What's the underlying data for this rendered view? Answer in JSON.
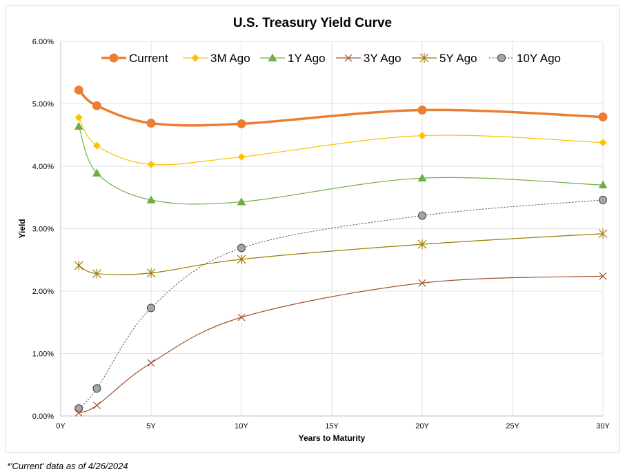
{
  "chart_data": {
    "type": "line",
    "title": "U.S. Treasury Yield Curve",
    "xlabel": "Years to Maturity",
    "ylabel": "Yield",
    "xlim": [
      0,
      30
    ],
    "ylim": [
      0,
      0.06
    ],
    "xticks": [
      0,
      5,
      10,
      15,
      20,
      25,
      30
    ],
    "xtick_labels": [
      "0Y",
      "5Y",
      "10Y",
      "15Y",
      "20Y",
      "25Y",
      "30Y"
    ],
    "yticks": [
      0,
      0.01,
      0.02,
      0.03,
      0.04,
      0.05,
      0.06
    ],
    "ytick_labels": [
      "0.00%",
      "1.00%",
      "2.00%",
      "3.00%",
      "4.00%",
      "5.00%",
      "6.00%"
    ],
    "grid": true,
    "legend_position": "top",
    "x": [
      1,
      2,
      5,
      10,
      20,
      30
    ],
    "series": [
      {
        "name": "Current",
        "color": "#ed7d31",
        "marker": "circle",
        "style": "solid-thick",
        "values": [
          0.0522,
          0.0497,
          0.0469,
          0.0468,
          0.049,
          0.0479
        ]
      },
      {
        "name": "3M Ago",
        "color": "#ffc000",
        "marker": "diamond",
        "style": "solid",
        "values": [
          0.0478,
          0.0433,
          0.0403,
          0.0415,
          0.0449,
          0.0438
        ]
      },
      {
        "name": "1Y Ago",
        "color": "#70ad47",
        "marker": "triangle",
        "style": "solid",
        "values": [
          0.0464,
          0.0389,
          0.0346,
          0.0343,
          0.0381,
          0.037
        ]
      },
      {
        "name": "3Y Ago",
        "color": "#a0522d",
        "marker": "x",
        "style": "solid",
        "values": [
          0.0005,
          0.0017,
          0.0085,
          0.0158,
          0.0213,
          0.0224
        ]
      },
      {
        "name": "5Y Ago",
        "color": "#9c7a00",
        "marker": "star",
        "style": "solid",
        "values": [
          0.0241,
          0.0228,
          0.0229,
          0.0251,
          0.0275,
          0.0292
        ]
      },
      {
        "name": "10Y Ago",
        "color": "#7f7f7f",
        "marker": "circle-grey",
        "style": "dotted",
        "values": [
          0.0012,
          0.0044,
          0.0173,
          0.0269,
          0.0321,
          0.0346
        ]
      }
    ]
  },
  "footnote": "*'Current' data as of 4/26/2024"
}
